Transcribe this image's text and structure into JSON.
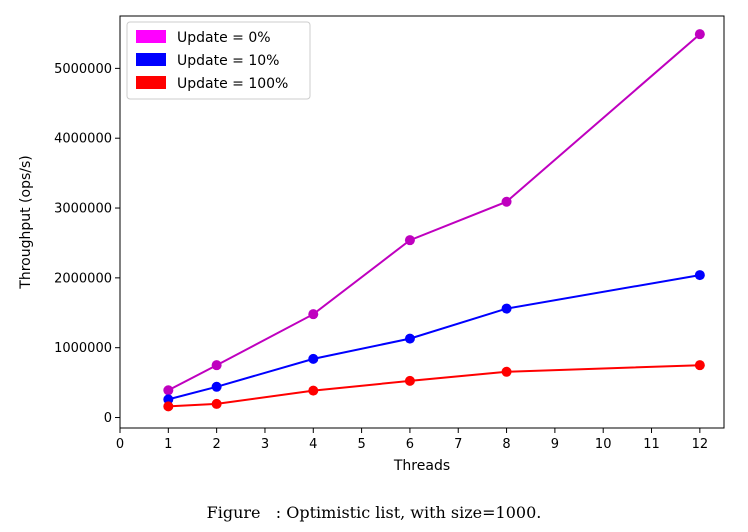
{
  "caption": "Figure   : Optimistic list, with size=1000.",
  "chart_data": {
    "type": "line",
    "title": "",
    "xlabel": "Threads",
    "ylabel": "Throughput (ops/s)",
    "xlim": [
      0,
      12.5
    ],
    "ylim": [
      -150000,
      5750000
    ],
    "xticks": [
      0,
      1,
      2,
      3,
      4,
      5,
      6,
      7,
      8,
      9,
      10,
      11,
      12
    ],
    "xtick_labels": [
      "0",
      "1",
      "2",
      "3",
      "4",
      "5",
      "6",
      "7",
      "8",
      "9",
      "10",
      "11",
      "12"
    ],
    "yticks": [
      0,
      1000000,
      2000000,
      3000000,
      4000000,
      5000000
    ],
    "ytick_labels": [
      "0",
      "1000000",
      "2000000",
      "3000000",
      "4000000",
      "5000000"
    ],
    "grid": false,
    "legend_position": "top-left",
    "x": [
      1,
      2,
      4,
      6,
      8,
      12
    ],
    "series": [
      {
        "name": "Update = 0%",
        "legend_color": "#ff00ff",
        "line_color": "#bf00bf",
        "values": [
          390000,
          750000,
          1480000,
          2540000,
          3090000,
          5490000
        ]
      },
      {
        "name": "Update = 10%",
        "legend_color": "#0000ff",
        "line_color": "#0000ff",
        "values": [
          260000,
          440000,
          840000,
          1130000,
          1560000,
          2040000
        ]
      },
      {
        "name": "Update = 100%",
        "legend_color": "#ff0000",
        "line_color": "#ff0000",
        "values": [
          160000,
          195000,
          385000,
          525000,
          655000,
          750000
        ]
      }
    ]
  }
}
